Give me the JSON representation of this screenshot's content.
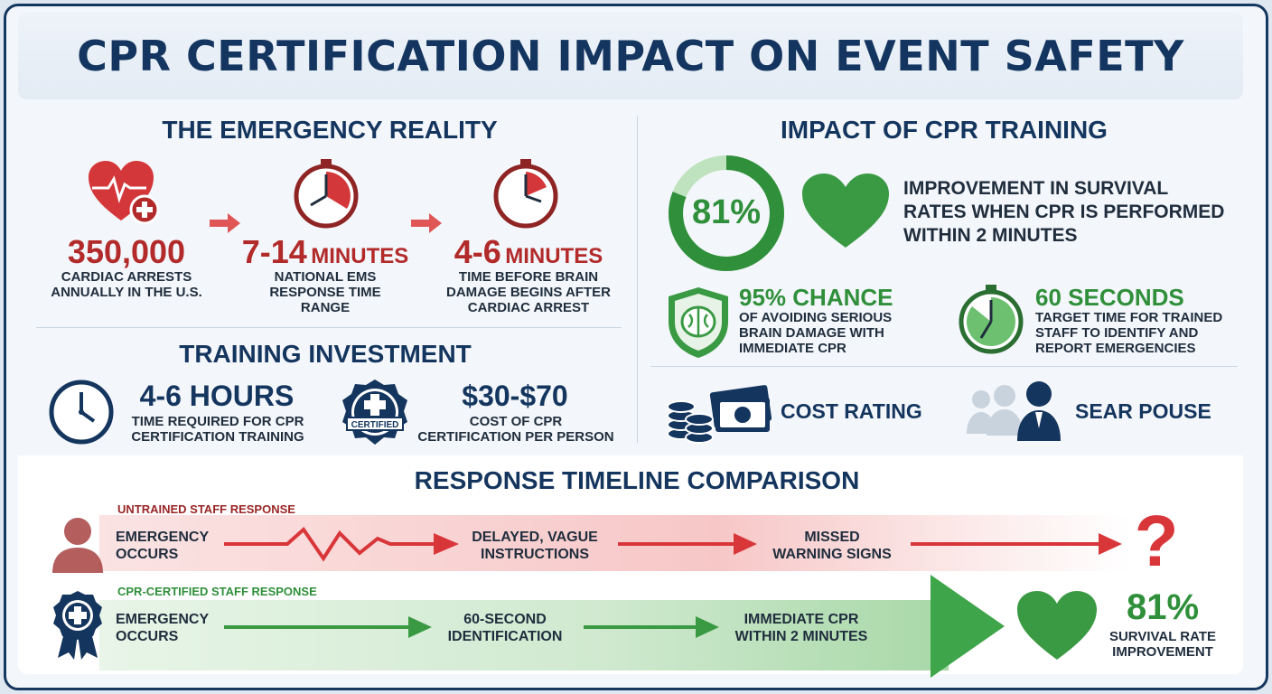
{
  "title": "CPR CERTIFICATION IMPACT ON EVENT SAFETY",
  "emergency": {
    "heading": "THE EMERGENCY REALITY",
    "stats": [
      {
        "num": "350,000",
        "unit": "",
        "text1": "CARDIAC ARRESTS",
        "text2": "ANNUALLY IN THE U.S.",
        "text3": ""
      },
      {
        "num": "7-14",
        "unit": "MINUTES",
        "text1": "NATIONAL EMS",
        "text2": "RESPONSE TIME",
        "text3": "RANGE"
      },
      {
        "num": "4-6",
        "unit": "MINUTES",
        "text1": "TIME BEFORE BRAIN",
        "text2": "DAMAGE BEGINS AFTER",
        "text3": "CARDIAC ARREST"
      }
    ]
  },
  "investment": {
    "heading": "TRAINING INVESTMENT",
    "hours": {
      "num": "4-6 HOURS",
      "text1": "TIME REQUIRED FOR CPR",
      "text2": "CERTIFICATION TRAINING"
    },
    "cost": {
      "num": "$30-$70",
      "text1": "COST OF CPR",
      "text2": "CERTIFICATION PER PERSON"
    },
    "badge_label": "CERTIFIED"
  },
  "impact": {
    "heading": "IMPACT OF CPR TRAINING",
    "ring_value": "81%",
    "ring_fraction": 0.81,
    "ring_text1": "IMPROVEMENT IN SURVIVAL",
    "ring_text2": "RATES WHEN CPR IS PERFORMED",
    "ring_text3": "WITHIN 2 MINUTES",
    "brain": {
      "num": "95% CHANCE",
      "text1": "OF AVOIDING SERIOUS",
      "text2": "BRAIN DAMAGE WITH",
      "text3": "IMMEDIATE CPR"
    },
    "seconds": {
      "num": "60 SECONDS",
      "text1": "TARGET TIME FOR TRAINED",
      "text2": "STAFF TO IDENTIFY AND",
      "text3": "REPORT EMERGENCIES"
    },
    "cost_rating": "COST RATING",
    "sear_pouse": "SEAR POUSE"
  },
  "timeline": {
    "heading": "RESPONSE TIMELINE COMPARISON",
    "untrained": {
      "label": "UNTRAINED STAFF RESPONSE",
      "step1a": "EMERGENCY",
      "step1b": "OCCURS",
      "step2a": "DELAYED, VAGUE",
      "step2b": "INSTRUCTIONS",
      "step3a": "MISSED",
      "step3b": "WARNING SIGNS",
      "end": "?"
    },
    "trained": {
      "label": "CPR-CERTIFIED STAFF RESPONSE",
      "step1a": "EMERGENCY",
      "step1b": "OCCURS",
      "step2a": "60-SECOND",
      "step2b": "IDENTIFICATION",
      "step3a": "IMMEDIATE CPR",
      "step3b": "WITHIN 2 MINUTES",
      "end_num": "81%",
      "end_text1": "SURVIVAL RATE",
      "end_text2": "IMPROVEMENT"
    }
  },
  "colors": {
    "navy": "#14355e",
    "red": "#b22a2a",
    "green": "#2f8f3a"
  }
}
